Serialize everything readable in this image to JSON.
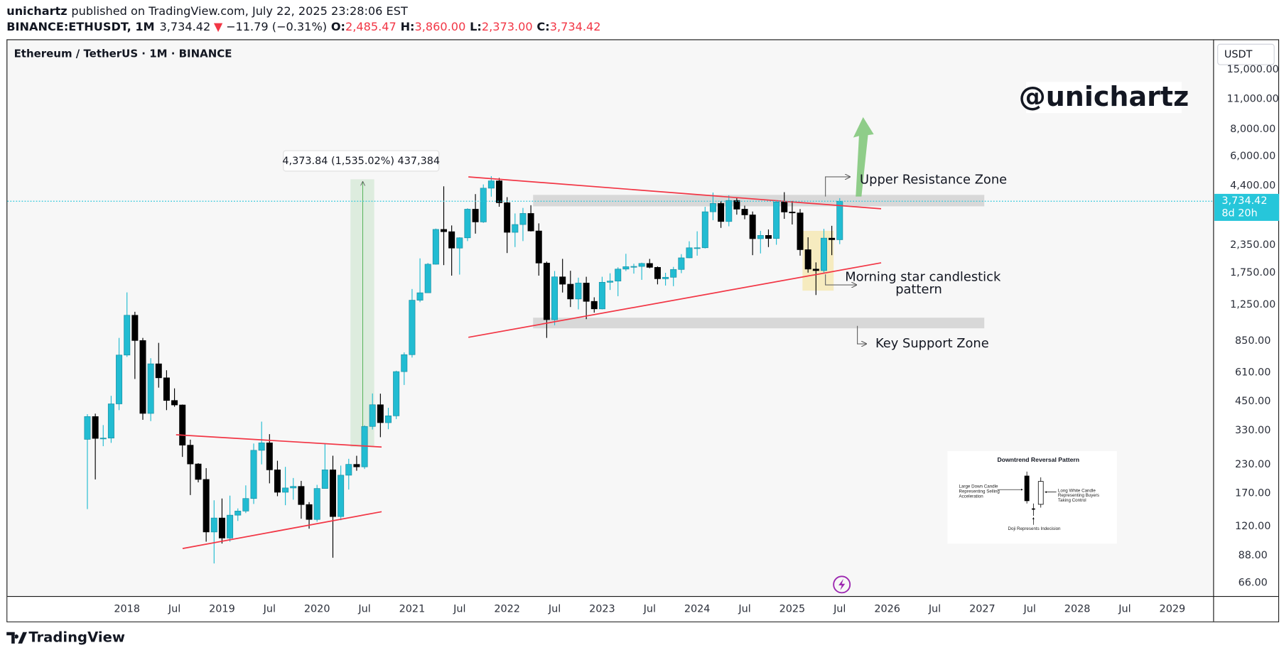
{
  "header": {
    "author": "unichartz",
    "published": "published on TradingView.com, July 22, 2025 23:28:06 EST",
    "symbol": "BINANCE:ETHUSDT, 1M",
    "price": "3,734.42",
    "arrow": "▼",
    "change": "−11.79 (−0.31%)",
    "ohlc": [
      [
        "O:",
        "2,485.47"
      ],
      [
        "H:",
        "3,860.00"
      ],
      [
        "L:",
        "2,373.00"
      ],
      [
        "C:",
        "3,734.42"
      ]
    ]
  },
  "chart_data": {
    "type": "candlestick",
    "title": "Ethereum / TetherUS · 1M · BINANCE",
    "currency": "USDT",
    "x": [
      "2017-08",
      "2017-09",
      "2017-10",
      "2017-11",
      "2017-12",
      "2018-01",
      "2018-02",
      "2018-03",
      "2018-04",
      "2018-05",
      "2018-06",
      "2018-07",
      "2018-08",
      "2018-09",
      "2018-10",
      "2018-11",
      "2018-12",
      "2019-01",
      "2019-02",
      "2019-03",
      "2019-04",
      "2019-05",
      "2019-06",
      "2019-07",
      "2019-08",
      "2019-09",
      "2019-10",
      "2019-11",
      "2019-12",
      "2020-01",
      "2020-02",
      "2020-03",
      "2020-04",
      "2020-05",
      "2020-06",
      "2020-07",
      "2020-08",
      "2020-09",
      "2020-10",
      "2020-11",
      "2020-12",
      "2021-01",
      "2021-02",
      "2021-03",
      "2021-04",
      "2021-05",
      "2021-06",
      "2021-07",
      "2021-08",
      "2021-09",
      "2021-10",
      "2021-11",
      "2021-12",
      "2022-01",
      "2022-02",
      "2022-03",
      "2022-04",
      "2022-05",
      "2022-06",
      "2022-07",
      "2022-08",
      "2022-09",
      "2022-10",
      "2022-11",
      "2022-12",
      "2023-01",
      "2023-02",
      "2023-03",
      "2023-04",
      "2023-05",
      "2023-06",
      "2023-07",
      "2023-08",
      "2023-09",
      "2023-10",
      "2023-11",
      "2023-12",
      "2024-01",
      "2024-02",
      "2024-03",
      "2024-04",
      "2024-05",
      "2024-06",
      "2024-07",
      "2024-08",
      "2024-09",
      "2024-10",
      "2024-11",
      "2024-12",
      "2025-01",
      "2025-02",
      "2025-03",
      "2025-04",
      "2025-05",
      "2025-06",
      "2025-07"
    ],
    "open": [
      301,
      383,
      304,
      305,
      438,
      734,
      1118,
      856,
      396,
      669,
      577,
      454,
      433,
      283,
      232,
      197,
      113,
      131,
      106,
      135,
      141,
      161,
      268,
      290,
      218,
      172,
      180,
      183,
      151,
      129,
      179,
      218,
      133,
      206,
      231,
      225,
      345,
      434,
      359,
      386,
      616,
      737,
      1311,
      1418,
      1918,
      2772,
      2706,
      2275,
      2536,
      3433,
      3000,
      4287,
      4631,
      3676,
      2688,
      2919,
      3282,
      2727,
      1942,
      1067,
      1678,
      1553,
      1328,
      1572,
      1295,
      1196,
      1585,
      1605,
      1822,
      1869,
      1874,
      1934,
      1856,
      1645,
      1671,
      1815,
      2052,
      2282,
      2283,
      3340,
      3647,
      3014,
      3763,
      3434,
      3232,
      2513,
      2602,
      2518,
      3705,
      3332,
      3300,
      2237,
      1822,
      1793,
      2528,
      2485.47
    ],
    "high": [
      393,
      395,
      350,
      477,
      880,
      1424,
      1160,
      880,
      710,
      835,
      625,
      516,
      435,
      300,
      234,
      222,
      158,
      161,
      166,
      145,
      185,
      288,
      363,
      318,
      240,
      225,
      200,
      194,
      155,
      186,
      288,
      253,
      228,
      245,
      253,
      349,
      489,
      488,
      420,
      622,
      755,
      1476,
      2041,
      1943,
      2797,
      4372,
      2891,
      2551,
      3466,
      4027,
      4460,
      4868,
      4778,
      3900,
      3282,
      3479,
      3580,
      2955,
      1972,
      1785,
      2030,
      1790,
      1664,
      1680,
      1352,
      1680,
      1743,
      1857,
      2142,
      1928,
      1950,
      2029,
      1874,
      1752,
      1865,
      2134,
      2445,
      2717,
      3522,
      4093,
      3730,
      3977,
      3887,
      3563,
      3350,
      2730,
      2770,
      3740,
      4109,
      3744,
      3437,
      2550,
      1956,
      2788,
      2880,
      3860
    ],
    "low": [
      144,
      197,
      280,
      290,
      410,
      720,
      570,
      370,
      365,
      520,
      410,
      425,
      250,
      167,
      191,
      102,
      81,
      100,
      102,
      127,
      138,
      152,
      231,
      189,
      165,
      150,
      159,
      130,
      117,
      126,
      179,
      86,
      128,
      177,
      216,
      220,
      334,
      308,
      335,
      373,
      535,
      715,
      1284,
      1423,
      1910,
      1900,
      1700,
      1719,
      2450,
      2651,
      2970,
      3919,
      3524,
      2159,
      2300,
      2450,
      2712,
      1700,
      880,
      1006,
      1422,
      1220,
      1190,
      1073,
      1150,
      1190,
      1461,
      1368,
      1785,
      1737,
      1626,
      1838,
      1550,
      1531,
      1521,
      1745,
      2044,
      2100,
      2266,
      3056,
      2817,
      2865,
      3240,
      3087,
      2111,
      2150,
      2300,
      2357,
      3100,
      2920,
      2100,
      1755,
      1385,
      1753,
      2111,
      2373
    ],
    "close": [
      383,
      304,
      305,
      438,
      734,
      1118,
      856,
      396,
      669,
      577,
      454,
      433,
      283,
      232,
      197,
      113,
      131,
      106,
      135,
      141,
      161,
      268,
      290,
      218,
      172,
      180,
      183,
      151,
      129,
      179,
      218,
      133,
      206,
      231,
      225,
      345,
      434,
      359,
      386,
      616,
      737,
      1311,
      1418,
      1918,
      2772,
      2706,
      2275,
      2536,
      3433,
      3000,
      4287,
      4631,
      3676,
      2688,
      2919,
      3282,
      2727,
      1942,
      1067,
      1678,
      1553,
      1328,
      1572,
      1295,
      1196,
      1585,
      1605,
      1822,
      1869,
      1874,
      1934,
      1856,
      1645,
      1671,
      1815,
      2052,
      2282,
      2283,
      3340,
      3647,
      3014,
      3763,
      3434,
      3232,
      2513,
      2602,
      2518,
      3705,
      3332,
      3300,
      2237,
      1822,
      1793,
      2528,
      2485.47,
      3734.42
    ],
    "colors": {
      "up": "#22bcd2",
      "down": "#000000",
      "last_price": "#26c6da"
    },
    "log_scale": true,
    "grid": false,
    "xlim": [
      "2016-10",
      "2029-06"
    ],
    "xticks": [
      {
        "value": "2018-01",
        "label": "2018"
      },
      {
        "value": "2018-07",
        "label": "Jul"
      },
      {
        "value": "2019-01",
        "label": "2019"
      },
      {
        "value": "2019-07",
        "label": "Jul"
      },
      {
        "value": "2020-01",
        "label": "2020"
      },
      {
        "value": "2020-07",
        "label": "Jul"
      },
      {
        "value": "2021-01",
        "label": "2021"
      },
      {
        "value": "2021-07",
        "label": "Jul"
      },
      {
        "value": "2022-01",
        "label": "2022"
      },
      {
        "value": "2022-07",
        "label": "Jul"
      },
      {
        "value": "2023-01",
        "label": "2023"
      },
      {
        "value": "2023-07",
        "label": "Jul"
      },
      {
        "value": "2024-01",
        "label": "2024"
      },
      {
        "value": "2024-07",
        "label": "Jul"
      },
      {
        "value": "2025-01",
        "label": "2025"
      },
      {
        "value": "2025-07",
        "label": "Jul"
      },
      {
        "value": "2026-01",
        "label": "2026"
      },
      {
        "value": "2026-07",
        "label": "Jul"
      },
      {
        "value": "2027-01",
        "label": "2027"
      },
      {
        "value": "2027-07",
        "label": "Jul"
      },
      {
        "value": "2028-01",
        "label": "2028"
      },
      {
        "value": "2028-07",
        "label": "Jul"
      },
      {
        "value": "2029-01",
        "label": "2029"
      }
    ],
    "ylim": [
      57.4,
      20340
    ],
    "yticks": [
      {
        "value": 66,
        "label": "66.00"
      },
      {
        "value": 88,
        "label": "88.00"
      },
      {
        "value": 120,
        "label": "120.00"
      },
      {
        "value": 170,
        "label": "170.00"
      },
      {
        "value": 230,
        "label": "230.00"
      },
      {
        "value": 330,
        "label": "330.00"
      },
      {
        "value": 450,
        "label": "450.00"
      },
      {
        "value": 610,
        "label": "610.00"
      },
      {
        "value": 850,
        "label": "850.00"
      },
      {
        "value": 1250,
        "label": "1,250.00"
      },
      {
        "value": 1750,
        "label": "1,750.00"
      },
      {
        "value": 2350,
        "label": "2,350.00"
      },
      {
        "value": 4400,
        "label": "4,400.00"
      },
      {
        "value": 6000,
        "label": "6,000.00"
      },
      {
        "value": 8000,
        "label": "8,000.00"
      },
      {
        "value": 11000,
        "label": "11,000.00"
      },
      {
        "value": 15000,
        "label": "15,000.00"
      }
    ],
    "last_price_label": "3,734.42",
    "countdown": "8d 20h",
    "watermark": "@unichartz",
    "annotations": {
      "measure": "4,373.84 (1,535.02%) 437,384",
      "resistance": "Upper Resistance Zone",
      "pattern": [
        "Morning star candlestick",
        "pattern"
      ],
      "support": "Key Support Zone"
    },
    "inset": {
      "title": "Downtrend Reversal Pattern",
      "left": [
        "Large Down Candle",
        "Representing Selling",
        "Acceleration"
      ],
      "right": [
        "Long White Candle",
        "Representing Buyers",
        "Taking Control"
      ],
      "bottom": "Doji Represents Indecision"
    }
  },
  "footer": {
    "logo": "TradingView"
  }
}
